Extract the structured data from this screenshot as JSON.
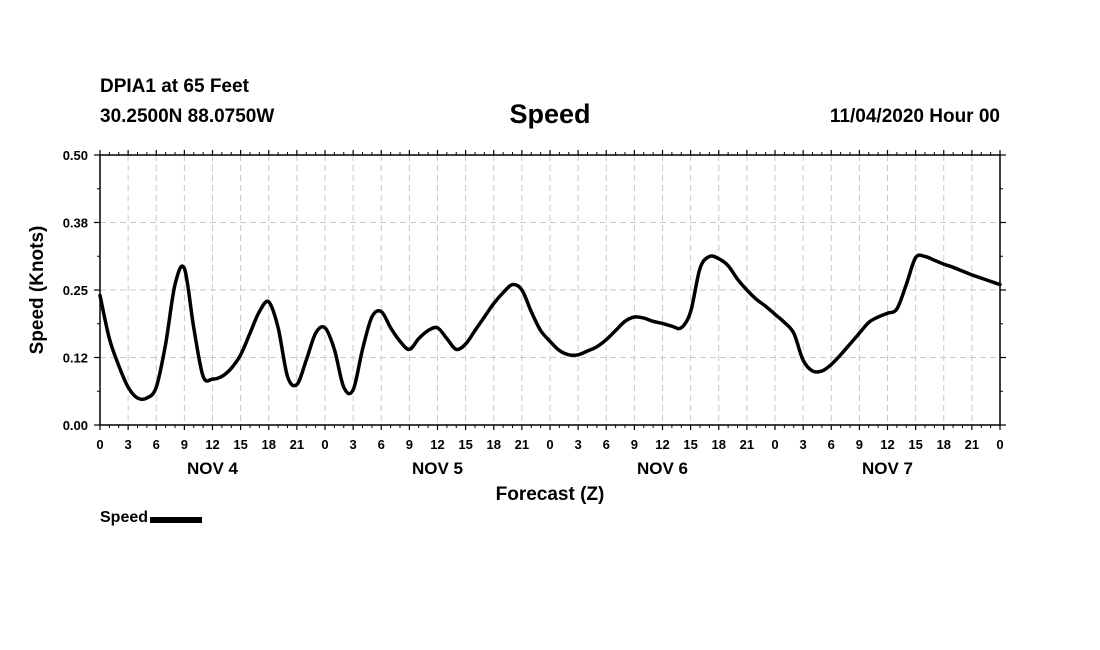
{
  "header": {
    "station": "DPIA1 at 65 Feet",
    "coords": "30.2500N 88.0750W",
    "title": "Speed",
    "run": "11/04/2020 Hour 00"
  },
  "chart_data": {
    "type": "line",
    "title": "Speed",
    "xlabel": "Forecast (Z)",
    "ylabel": "Speed (Knots)",
    "ylim": [
      0,
      0.5
    ],
    "xlim": [
      0,
      96
    ],
    "yticks": [
      "0.00",
      "0.12",
      "0.25",
      "0.38",
      "0.50"
    ],
    "ytick_values": [
      0,
      0.125,
      0.25,
      0.375,
      0.5
    ],
    "xtick_hours": [
      0,
      3,
      6,
      9,
      12,
      15,
      18,
      21,
      24,
      27,
      30,
      33,
      36,
      39,
      42,
      45,
      48,
      51,
      54,
      57,
      60,
      63,
      66,
      69,
      72,
      75,
      78,
      81,
      84,
      87,
      90,
      93,
      96
    ],
    "xtick_labels": [
      "0",
      "3",
      "6",
      "9",
      "12",
      "15",
      "18",
      "21",
      "0",
      "3",
      "6",
      "9",
      "12",
      "15",
      "18",
      "21",
      "0",
      "3",
      "6",
      "9",
      "12",
      "15",
      "18",
      "21",
      "0",
      "3",
      "6",
      "9",
      "12",
      "15",
      "18",
      "21",
      "0"
    ],
    "day_labels": [
      {
        "label": "NOV 4",
        "hour": 12
      },
      {
        "label": "NOV 5",
        "hour": 36
      },
      {
        "label": "NOV 6",
        "hour": 60
      },
      {
        "label": "NOV 7",
        "hour": 84
      }
    ],
    "grid": true,
    "legend_position": "bottom-left",
    "series": [
      {
        "name": "Speed",
        "color": "#000000",
        "x": [
          0,
          1,
          2,
          3,
          4,
          5,
          6,
          7,
          8,
          9,
          10,
          11,
          12,
          13,
          14,
          15,
          16,
          17,
          18,
          19,
          20,
          21,
          22,
          23,
          24,
          25,
          26,
          27,
          28,
          29,
          30,
          31,
          32,
          33,
          34,
          35,
          36,
          37,
          38,
          39,
          40,
          41,
          42,
          43,
          44,
          45,
          46,
          47,
          48,
          49,
          50,
          51,
          52,
          53,
          54,
          55,
          56,
          57,
          58,
          59,
          60,
          61,
          62,
          63,
          64,
          65,
          66,
          67,
          68,
          69,
          70,
          71,
          72,
          73,
          74,
          75,
          76,
          77,
          78,
          79,
          80,
          81,
          82,
          83,
          84,
          85,
          86,
          87,
          88,
          89,
          90,
          91,
          92,
          93,
          94,
          95,
          96
        ],
        "values": [
          0.24,
          0.16,
          0.11,
          0.07,
          0.05,
          0.05,
          0.07,
          0.15,
          0.26,
          0.29,
          0.18,
          0.09,
          0.085,
          0.09,
          0.105,
          0.13,
          0.17,
          0.21,
          0.228,
          0.18,
          0.09,
          0.075,
          0.12,
          0.17,
          0.18,
          0.14,
          0.07,
          0.065,
          0.14,
          0.2,
          0.21,
          0.18,
          0.155,
          0.14,
          0.16,
          0.175,
          0.18,
          0.16,
          0.14,
          0.15,
          0.175,
          0.2,
          0.225,
          0.245,
          0.26,
          0.25,
          0.21,
          0.175,
          0.155,
          0.138,
          0.13,
          0.13,
          0.137,
          0.145,
          0.158,
          0.175,
          0.192,
          0.2,
          0.198,
          0.192,
          0.188,
          0.183,
          0.18,
          0.21,
          0.29,
          0.312,
          0.308,
          0.295,
          0.27,
          0.25,
          0.233,
          0.22,
          0.205,
          0.19,
          0.17,
          0.12,
          0.1,
          0.1,
          0.112,
          0.13,
          0.15,
          0.17,
          0.19,
          0.2,
          0.207,
          0.215,
          0.26,
          0.31,
          0.312,
          0.305,
          0.298,
          0.292,
          0.285,
          0.278,
          0.272,
          0.266,
          0.26
        ]
      }
    ]
  },
  "legend": {
    "label": "Speed"
  }
}
